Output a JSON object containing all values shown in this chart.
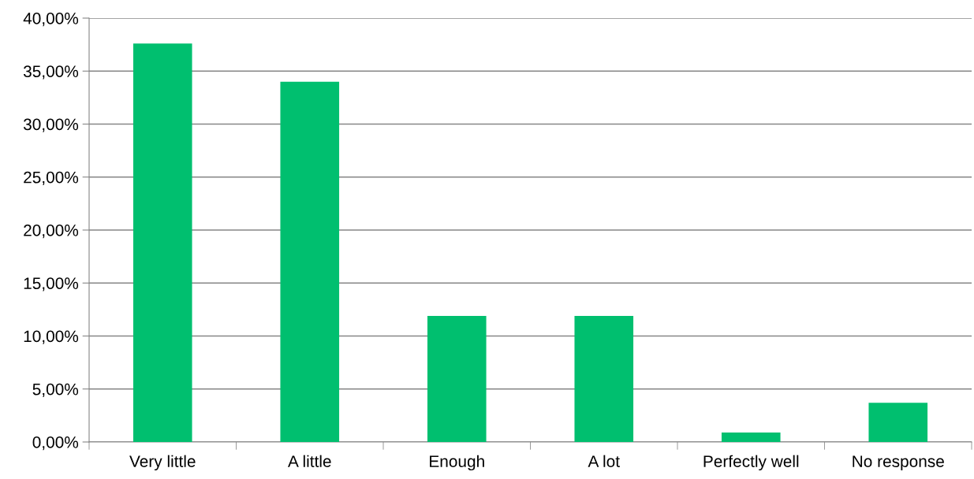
{
  "chart_data": {
    "type": "bar",
    "categories": [
      "Very little",
      "A little",
      "Enough",
      "A lot",
      "Perfectly well",
      "No response"
    ],
    "values": [
      37.6,
      34.0,
      11.9,
      11.9,
      0.9,
      3.7
    ],
    "color": "#00bf6f",
    "ylim": [
      0,
      40
    ],
    "yticks": [
      {
        "value": 0,
        "label": "0,00%"
      },
      {
        "value": 5,
        "label": "5,00%"
      },
      {
        "value": 10,
        "label": "10,00%"
      },
      {
        "value": 15,
        "label": "15,00%"
      },
      {
        "value": 20,
        "label": "20,00%"
      },
      {
        "value": 25,
        "label": "25,00%"
      },
      {
        "value": 30,
        "label": "30,00%"
      },
      {
        "value": 35,
        "label": "35,00%"
      },
      {
        "value": 40,
        "label": "40,00%"
      }
    ],
    "grid": "y",
    "legend": false
  }
}
